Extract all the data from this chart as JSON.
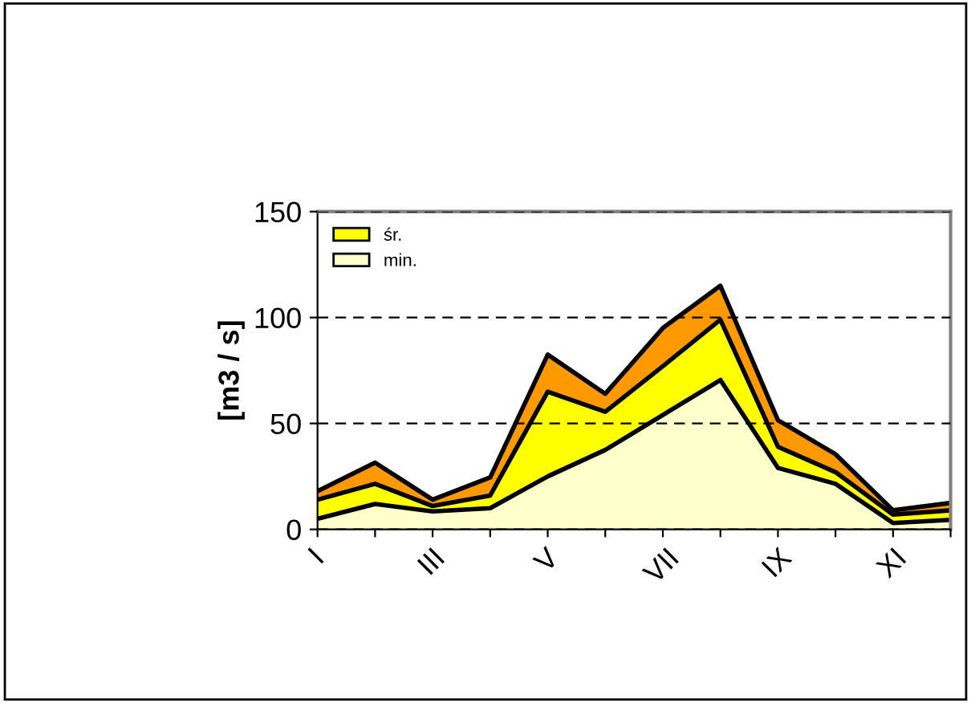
{
  "chart_data": {
    "type": "area",
    "ylabel": "[m3 / s]",
    "categories": [
      "I",
      null,
      "III",
      null,
      "V",
      null,
      "VII",
      null,
      "IX",
      null,
      "XI",
      null
    ],
    "series": [
      {
        "color": "#ff9900",
        "values": [
          18,
          31.5,
          14,
          24.5,
          82.5,
          64,
          95,
          115,
          51.5,
          35.5,
          9,
          12.5
        ]
      },
      {
        "name": "śr.",
        "color": "#ffff00",
        "values": [
          14,
          21.5,
          11,
          16,
          65,
          55.5,
          77,
          99,
          39,
          27,
          7,
          9
        ]
      },
      {
        "name": "min.",
        "color": "#ffffcc",
        "values": [
          5,
          12,
          8.5,
          10,
          25,
          37.5,
          54,
          70.5,
          29,
          21.5,
          3,
          4.5
        ]
      }
    ],
    "ylim": [
      0,
      150
    ],
    "yticks": [
      0,
      50,
      100,
      150
    ],
    "grid": "y",
    "legend": "top left",
    "line_style": "solid"
  }
}
